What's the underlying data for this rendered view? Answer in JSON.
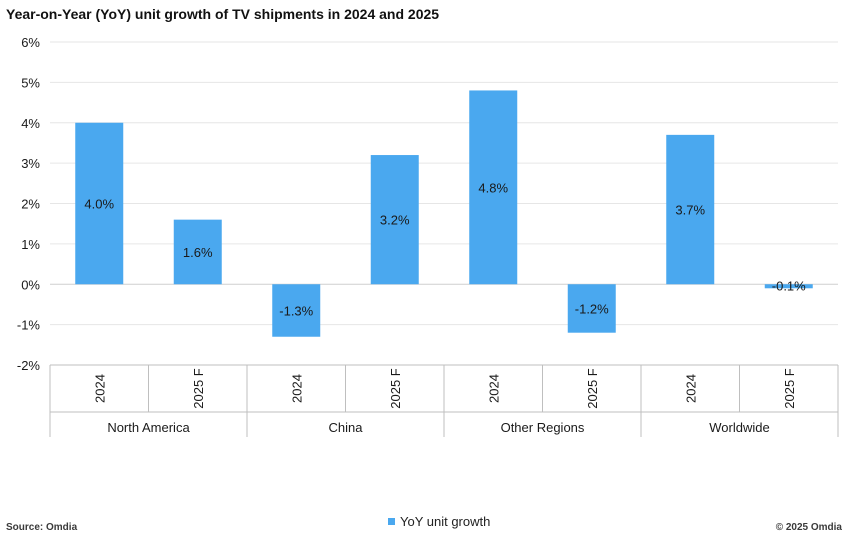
{
  "title": "Year-on-Year (YoY) unit growth of TV shipments in 2024 and 2025",
  "footer": {
    "source": "Source: Omdia",
    "copyright": "© 2025 Omdia"
  },
  "colors": {
    "bar": "#4aa8ef",
    "gridline": "#e6e6e6",
    "axis": "#bfbfbf",
    "text": "#1a1a1a"
  },
  "chart_data": {
    "type": "bar",
    "title": "Year-on-Year (YoY) unit growth of TV shipments in 2024 and 2025",
    "xlabel": "",
    "ylabel": "",
    "ylim": [
      -2,
      6
    ],
    "y_ticks": [
      "6%",
      "5%",
      "4%",
      "3%",
      "2%",
      "1%",
      "0%",
      "-1%",
      "-2%"
    ],
    "grid": true,
    "legend_position": "bottom",
    "groups": [
      "North America",
      "China",
      "Other Regions",
      "Worldwide"
    ],
    "categories": [
      "2024",
      "2025 F",
      "2024",
      "2025 F",
      "2024",
      "2025 F",
      "2024",
      "2025 F"
    ],
    "series": [
      {
        "name": "YoY unit growth",
        "values": [
          4.0,
          1.6,
          -1.3,
          3.2,
          4.8,
          -1.2,
          3.7,
          -0.1
        ],
        "data_labels": [
          "4.0%",
          "1.6%",
          "-1.3%",
          "3.2%",
          "4.8%",
          "-1.2%",
          "3.7%",
          "-0.1%"
        ]
      }
    ]
  }
}
